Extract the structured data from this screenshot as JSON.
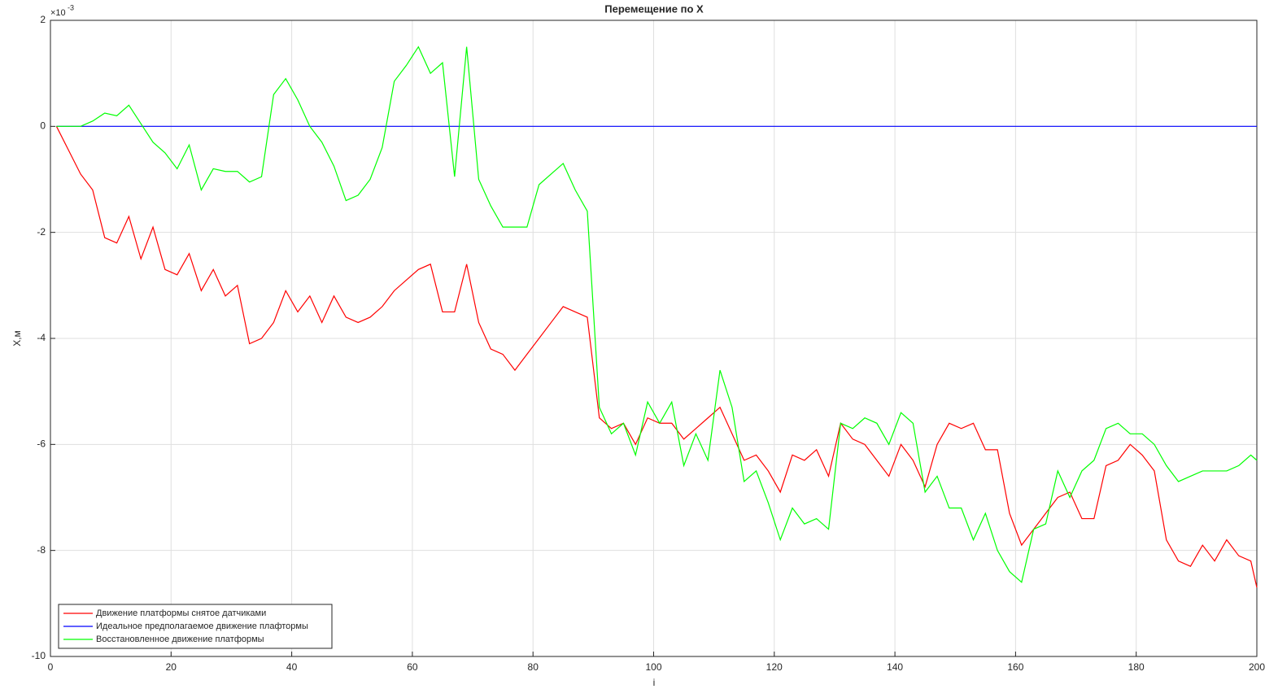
{
  "chart_data": {
    "type": "line",
    "title": "Перемещение по X",
    "x_label": "i",
    "y_label": "X,м",
    "y_multiplier": {
      "base": "×10",
      "exponent": "-3"
    },
    "xlim": [
      0,
      200
    ],
    "xticks": [
      0,
      20,
      40,
      60,
      80,
      100,
      120,
      140,
      160,
      180,
      200
    ],
    "ylim": [
      -10,
      2
    ],
    "yticks": [
      -10,
      -8,
      -6,
      -4,
      -2,
      0,
      2
    ],
    "grid": true,
    "legend_position": "southwest",
    "x": [
      1,
      3,
      5,
      7,
      9,
      11,
      13,
      15,
      17,
      19,
      21,
      23,
      25,
      27,
      29,
      31,
      33,
      35,
      37,
      39,
      41,
      43,
      45,
      47,
      49,
      51,
      53,
      55,
      57,
      59,
      61,
      63,
      65,
      67,
      69,
      71,
      73,
      75,
      77,
      79,
      81,
      83,
      85,
      87,
      89,
      91,
      93,
      95,
      97,
      99,
      101,
      103,
      105,
      107,
      109,
      111,
      113,
      115,
      117,
      119,
      121,
      123,
      125,
      127,
      129,
      131,
      133,
      135,
      137,
      139,
      141,
      143,
      145,
      147,
      149,
      151,
      153,
      155,
      157,
      159,
      161,
      163,
      165,
      167,
      169,
      171,
      173,
      175,
      177,
      179,
      181,
      183,
      185,
      187,
      189,
      191,
      193,
      195,
      197,
      199,
      200
    ],
    "series": [
      {
        "name": "Движение платформы снятое датчиками",
        "color": "#ff0000",
        "values": [
          0,
          -0.45,
          -0.9,
          -1.2,
          -2.1,
          -2.2,
          -1.7,
          -2.5,
          -1.9,
          -2.7,
          -2.8,
          -2.4,
          -3.1,
          -2.7,
          -3.2,
          -3.0,
          -4.1,
          -4.0,
          -3.7,
          -3.1,
          -3.5,
          -3.2,
          -3.7,
          -3.2,
          -3.6,
          -3.7,
          -3.6,
          -3.4,
          -3.1,
          -2.9,
          -2.7,
          -2.6,
          -3.5,
          -3.5,
          -2.6,
          -3.7,
          -4.2,
          -4.3,
          -4.6,
          -4.3,
          -4.0,
          -3.7,
          -3.4,
          -3.5,
          -3.6,
          -5.5,
          -5.7,
          -5.6,
          -6.0,
          -5.5,
          -5.6,
          -5.6,
          -5.9,
          -5.7,
          -5.5,
          -5.3,
          -5.8,
          -6.3,
          -6.2,
          -6.5,
          -6.9,
          -6.2,
          -6.3,
          -6.1,
          -6.6,
          -5.6,
          -5.9,
          -6.0,
          -6.3,
          -6.6,
          -6.0,
          -6.3,
          -6.8,
          -6.0,
          -5.6,
          -5.7,
          -5.6,
          -6.1,
          -6.1,
          -7.3,
          -7.9,
          -7.6,
          -7.3,
          -7.0,
          -6.9,
          -7.4,
          -7.4,
          -6.4,
          -6.3,
          -6.0,
          -6.2,
          -6.5,
          -7.8,
          -8.2,
          -8.3,
          -7.9,
          -8.2,
          -7.8,
          -8.1,
          -8.2,
          -8.7
        ]
      },
      {
        "name": "Идеальное предполагаемое движение плафтормы",
        "color": "#0000ff",
        "values": [
          0,
          0,
          0,
          0,
          0,
          0,
          0,
          0,
          0,
          0,
          0,
          0,
          0,
          0,
          0,
          0,
          0,
          0,
          0,
          0,
          0,
          0,
          0,
          0,
          0,
          0,
          0,
          0,
          0,
          0,
          0,
          0,
          0,
          0,
          0,
          0,
          0,
          0,
          0,
          0,
          0,
          0,
          0,
          0,
          0,
          0,
          0,
          0,
          0,
          0,
          0,
          0,
          0,
          0,
          0,
          0,
          0,
          0,
          0,
          0,
          0,
          0,
          0,
          0,
          0,
          0,
          0,
          0,
          0,
          0,
          0,
          0,
          0,
          0,
          0,
          0,
          0,
          0,
          0,
          0,
          0,
          0,
          0,
          0,
          0,
          0,
          0,
          0,
          0,
          0,
          0,
          0,
          0,
          0,
          0,
          0,
          0,
          0,
          0,
          0,
          0
        ]
      },
      {
        "name": "Восстановленное движение платформы",
        "color": "#00ff00",
        "values": [
          0,
          0.0,
          0.0,
          0.1,
          0.25,
          0.2,
          0.4,
          0.05,
          -0.3,
          -0.5,
          -0.8,
          -0.35,
          -1.2,
          -0.8,
          -0.85,
          -0.85,
          -1.05,
          -0.95,
          0.6,
          0.9,
          0.5,
          0.0,
          -0.3,
          -0.75,
          -1.4,
          -1.3,
          -1.0,
          -0.4,
          0.85,
          1.15,
          1.5,
          1.0,
          1.2,
          -0.95,
          1.5,
          -1.0,
          -1.5,
          -1.9,
          -1.9,
          -1.9,
          -1.1,
          -0.9,
          -0.7,
          -1.2,
          -1.6,
          -5.3,
          -5.8,
          -5.6,
          -6.2,
          -5.2,
          -5.6,
          -5.2,
          -6.4,
          -5.8,
          -6.3,
          -4.6,
          -5.3,
          -6.7,
          -6.5,
          -7.1,
          -7.8,
          -7.2,
          -7.5,
          -7.4,
          -7.6,
          -5.6,
          -5.7,
          -5.5,
          -5.6,
          -6.0,
          -5.4,
          -5.6,
          -6.9,
          -6.6,
          -7.2,
          -7.2,
          -7.8,
          -7.3,
          -8.0,
          -8.4,
          -8.6,
          -7.6,
          -7.5,
          -6.5,
          -7.0,
          -6.5,
          -6.3,
          -5.7,
          -5.6,
          -5.8,
          -5.8,
          -6.0,
          -6.4,
          -6.7,
          -6.6,
          -6.5,
          -6.5,
          -6.5,
          -6.4,
          -6.2,
          -6.3
        ]
      }
    ]
  }
}
